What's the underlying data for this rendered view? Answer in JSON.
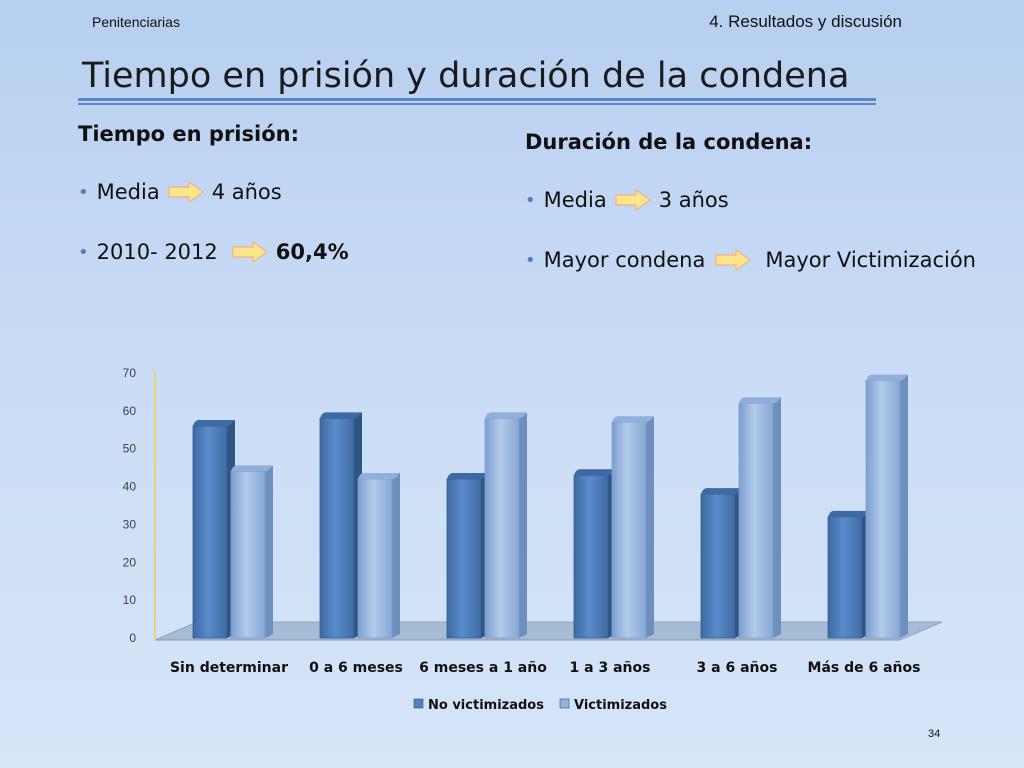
{
  "header": {
    "left": "Penitenciarias",
    "right": "4. Resultados y discusión"
  },
  "title": "Tiempo en prisión y duración de la condena",
  "left_column": {
    "heading": "Tiempo en prisión:",
    "items": [
      {
        "label": "Media",
        "value": "4 años"
      },
      {
        "label": "2010- 2012",
        "value": "60,4%"
      }
    ]
  },
  "right_column": {
    "heading": "Duración de la condena:",
    "items": [
      {
        "label": "Media",
        "value": "3 años"
      },
      {
        "label": "Mayor condena",
        "value": "Mayor Victimización"
      }
    ]
  },
  "chart_data": {
    "type": "bar",
    "categories": [
      "Sin determinar",
      "0 a 6 meses",
      "6 meses a 1 año",
      "1  a 3 años",
      "3 a 6 años",
      "Más de 6 años"
    ],
    "series": [
      {
        "name": "No victimizados",
        "values": [
          56,
          58,
          42,
          43,
          38,
          32
        ],
        "color": "#4f81bd"
      },
      {
        "name": "Victimizados",
        "values": [
          44,
          42,
          58,
          57,
          62,
          68
        ],
        "color": "#95b3d7"
      }
    ],
    "ylim": [
      0,
      70
    ],
    "yticks": [
      "0",
      "10",
      "20",
      "30",
      "40",
      "50",
      "60",
      "70"
    ],
    "legend_position": "bottom",
    "grid": false
  },
  "page_number": "34"
}
